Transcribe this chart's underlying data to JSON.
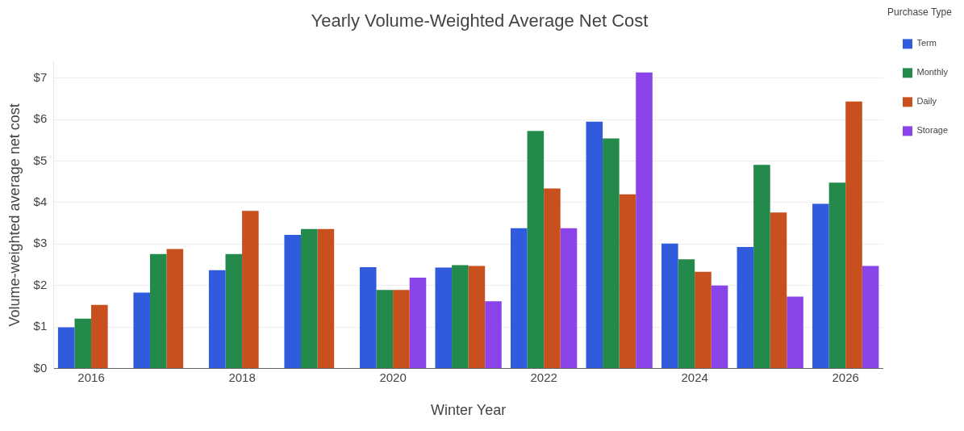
{
  "chart_data": {
    "type": "bar",
    "title": "Yearly Volume-Weighted Average Net Cost",
    "xlabel": "Winter Year",
    "ylabel": "Volume-weighted average net cost",
    "legend_title": "Purchase Type",
    "categories": [
      "2016",
      null,
      "2018",
      null,
      "2020",
      null,
      "2022",
      null,
      "2024",
      null,
      "2026"
    ],
    "series": [
      {
        "name": "Term",
        "color": "#2f5bdc",
        "values": [
          0.99,
          1.83,
          2.37,
          3.22,
          2.44,
          2.43,
          3.38,
          5.95,
          3.01,
          2.93,
          3.97
        ]
      },
      {
        "name": "Monthly",
        "color": "#238a4b",
        "values": [
          1.2,
          2.76,
          2.76,
          3.36,
          1.89,
          2.49,
          5.73,
          5.55,
          2.63,
          4.91,
          4.48
        ]
      },
      {
        "name": "Daily",
        "color": "#c8501e",
        "values": [
          1.53,
          2.88,
          3.8,
          3.36,
          1.89,
          2.47,
          4.34,
          4.2,
          2.33,
          3.76,
          6.44
        ]
      },
      {
        "name": "Storage",
        "color": "#8a44ea",
        "values": [
          null,
          null,
          null,
          null,
          2.19,
          1.62,
          3.38,
          7.14,
          2,
          1.73,
          2.47
        ]
      }
    ],
    "ylim": [
      0,
      7.4
    ],
    "yticks": [
      {
        "value": 0,
        "label": "$0"
      },
      {
        "value": 1,
        "label": "$1"
      },
      {
        "value": 2,
        "label": "$2"
      },
      {
        "value": 3,
        "label": "$3"
      },
      {
        "value": 4,
        "label": "$4"
      },
      {
        "value": 5,
        "label": "$5"
      },
      {
        "value": 6,
        "label": "$6"
      },
      {
        "value": 7,
        "label": "$7"
      }
    ],
    "grid": "y",
    "legend": "top right"
  }
}
